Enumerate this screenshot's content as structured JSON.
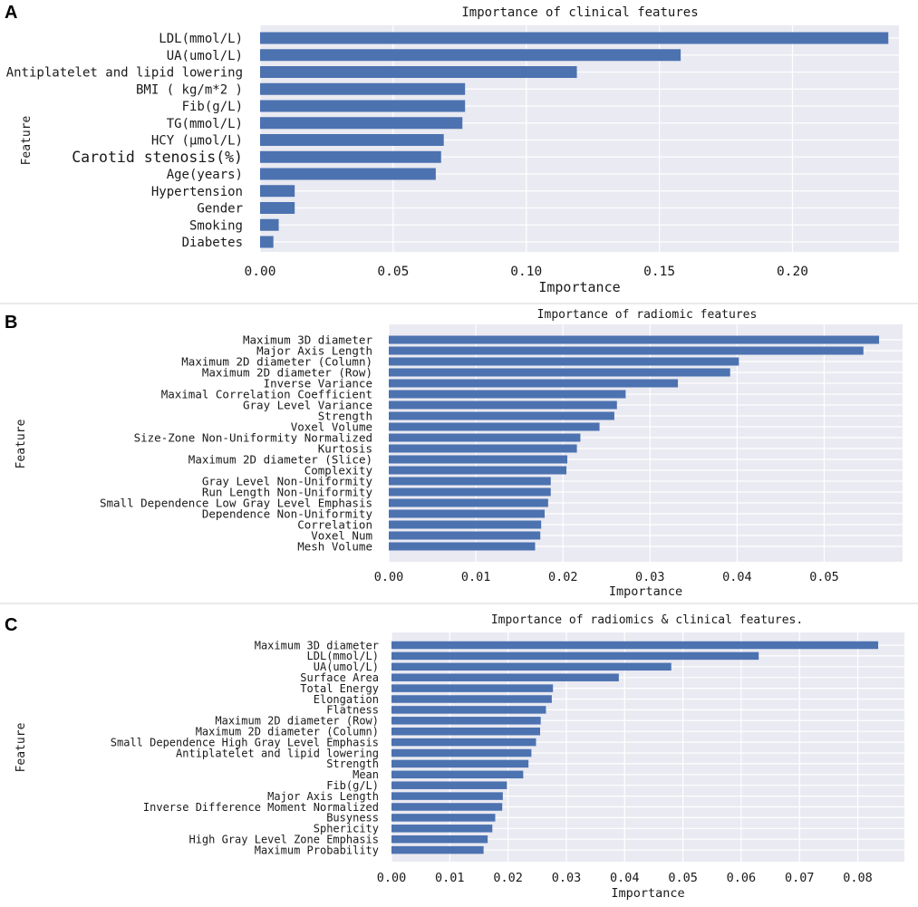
{
  "chart_data": [
    {
      "panel": "A",
      "type": "bar",
      "orientation": "horizontal",
      "title": "Importance of clinical features",
      "xlabel": "Importance",
      "ylabel": "Feature",
      "xlim": [
        0,
        0.24
      ],
      "xticks": [
        0.0,
        0.05,
        0.1,
        0.15,
        0.2
      ],
      "xtick_labels": [
        "0.00",
        "0.05",
        "0.10",
        "0.15",
        "0.20"
      ],
      "grid": true,
      "categories": [
        "LDL(mmol/L)",
        "UA(umol/L)",
        "Antiplatelet and lipid lowering",
        "BMI ( kg/m*2 )",
        "Fib(g/L)",
        "TG(mmol/L)",
        "HCY (μmol/L)",
        "Carotid stenosis(%)",
        "Age(years)",
        "Hypertension",
        "Gender",
        "Smoking",
        "Diabetes"
      ],
      "values": [
        0.236,
        0.158,
        0.119,
        0.077,
        0.077,
        0.076,
        0.069,
        0.068,
        0.066,
        0.013,
        0.013,
        0.007,
        0.005
      ]
    },
    {
      "panel": "B",
      "type": "bar",
      "orientation": "horizontal",
      "title": "Importance of radiomic features",
      "xlabel": "Importance",
      "ylabel": "Feature",
      "xlim": [
        0,
        0.059
      ],
      "xticks": [
        0.0,
        0.01,
        0.02,
        0.03,
        0.04,
        0.05
      ],
      "xtick_labels": [
        "0.00",
        "0.01",
        "0.02",
        "0.03",
        "0.04",
        "0.05"
      ],
      "grid": true,
      "categories": [
        "Maximum 3D diameter",
        "Major Axis Length",
        "Maximum 2D diameter (Column)",
        "Maximum 2D diameter (Row)",
        "Inverse Variance",
        "Maximal Correlation Coefficient",
        "Gray Level Variance",
        "Strength",
        "Voxel Volume",
        "Size-Zone Non-Uniformity Normalized",
        "Kurtosis",
        "Maximum 2D diameter (Slice)",
        "Complexity",
        "Gray Level Non-Uniformity",
        "Run Length Non-Uniformity",
        "Small Dependence Low Gray Level Emphasis",
        "Dependence Non-Uniformity",
        "Correlation",
        "Voxel Num",
        "Mesh Volume"
      ],
      "values": [
        0.0563,
        0.0545,
        0.0402,
        0.0392,
        0.0332,
        0.0272,
        0.0262,
        0.0259,
        0.0242,
        0.022,
        0.0216,
        0.0205,
        0.0204,
        0.0186,
        0.0186,
        0.0183,
        0.0179,
        0.0175,
        0.0174,
        0.0168
      ]
    },
    {
      "panel": "C",
      "type": "bar",
      "orientation": "horizontal",
      "title": "Importance of radiomics & clinical features.",
      "xlabel": "Importance",
      "ylabel": "Feature",
      "xlim": [
        0,
        0.088
      ],
      "xticks": [
        0.0,
        0.01,
        0.02,
        0.03,
        0.04,
        0.05,
        0.06,
        0.07,
        0.08
      ],
      "xtick_labels": [
        "0.00",
        "0.01",
        "0.02",
        "0.03",
        "0.04",
        "0.05",
        "0.06",
        "0.07",
        "0.08"
      ],
      "grid": true,
      "categories": [
        "Maximum 3D diameter",
        "LDL(mmol/L)",
        "UA(umol/L)",
        "Surface Area",
        "Total Energy",
        "Elongation",
        "Flatness",
        "Maximum 2D diameter (Row)",
        "Maximum 2D diameter (Column)",
        "Small Dependence High Gray Level Emphasis",
        "Antiplatelet and lipid lowering",
        "Strength",
        "Mean",
        "Fib(g/L)",
        "Major Axis Length",
        "Inverse Difference Moment Normalized",
        "Busyness",
        "Sphericity",
        "High Gray Level Zone Emphasis",
        "Maximum Probability"
      ],
      "values": [
        0.0835,
        0.063,
        0.048,
        0.039,
        0.0277,
        0.0275,
        0.0265,
        0.0256,
        0.0255,
        0.0248,
        0.024,
        0.0235,
        0.0226,
        0.0198,
        0.0191,
        0.019,
        0.0178,
        0.0173,
        0.0165,
        0.0158
      ]
    }
  ]
}
